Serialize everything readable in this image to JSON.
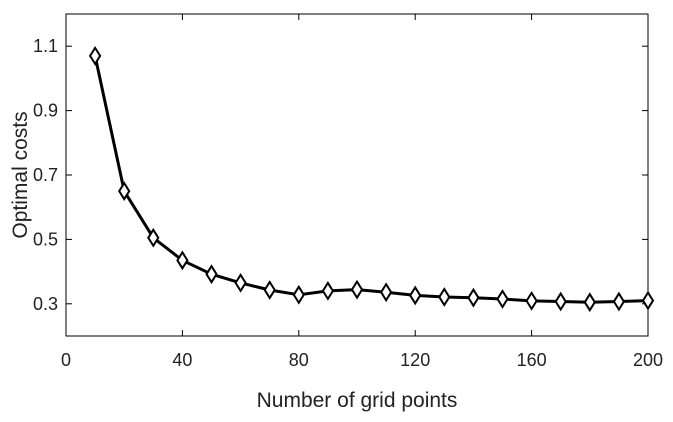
{
  "chart_data": {
    "type": "line",
    "title": "",
    "xlabel": "Number of grid points",
    "ylabel": "Optimal costs",
    "xlim": [
      0,
      200
    ],
    "ylim": [
      0.2,
      1.2
    ],
    "xticks": [
      0,
      40,
      80,
      120,
      160,
      200
    ],
    "xtick_labels": [
      "0",
      "40",
      "80",
      "120",
      "160",
      "200"
    ],
    "yticks": [
      0.3,
      0.5,
      0.7,
      0.9,
      1.1
    ],
    "ytick_labels": [
      "0.3",
      "0.5",
      "0.7",
      "0.9",
      "1.1"
    ],
    "grid": false,
    "marker": "diamond",
    "line_color": "#000000",
    "series": [
      {
        "x": [
          10,
          20,
          30,
          40,
          50,
          60,
          70,
          80,
          90,
          100,
          110,
          120,
          130,
          140,
          150,
          160,
          170,
          180,
          190,
          200
        ],
        "y": [
          1.07,
          0.65,
          0.505,
          0.435,
          0.392,
          0.365,
          0.343,
          0.328,
          0.34,
          0.344,
          0.336,
          0.326,
          0.321,
          0.319,
          0.315,
          0.309,
          0.307,
          0.305,
          0.307,
          0.31
        ]
      }
    ]
  }
}
